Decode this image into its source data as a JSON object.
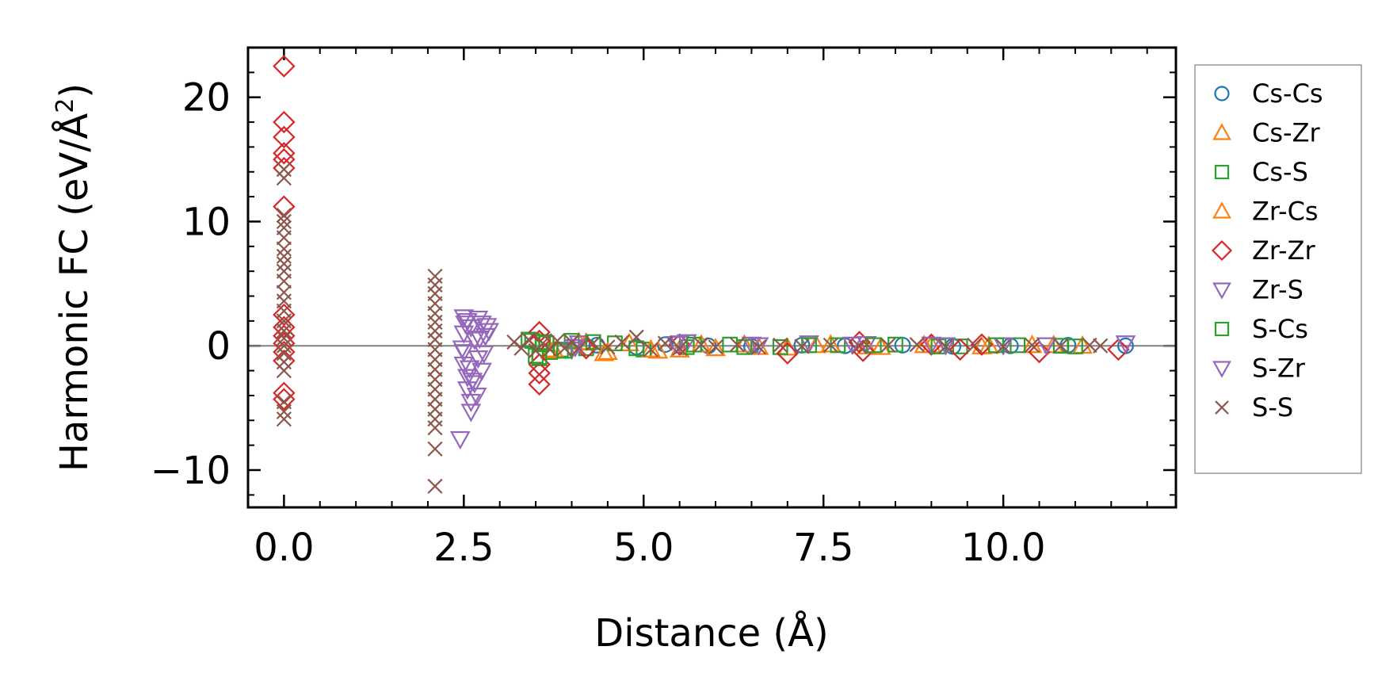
{
  "chart_data": {
    "type": "scatter",
    "title": "",
    "xlabel": "Distance (Å)",
    "ylabel": "Harmonic FC (eV/Å²)",
    "ylabel_main": "Harmonic FC (eV/Å",
    "ylabel_sup": "2",
    "ylabel_close": ")",
    "xlim": [
      -0.5,
      12.4
    ],
    "ylim": [
      -13,
      24
    ],
    "xticks": [
      0.0,
      2.5,
      5.0,
      7.5,
      10.0
    ],
    "xtick_labels": [
      "0.0",
      "2.5",
      "5.0",
      "7.5",
      "10.0"
    ],
    "yticks": [
      -10,
      0,
      10,
      20
    ],
    "ytick_labels": [
      "−10",
      "0",
      "10",
      "20"
    ],
    "grid": false,
    "zero_line": true,
    "legend_position": "right-outside",
    "series": [
      {
        "name": "Cs-Cs",
        "marker": "circle",
        "color": "#1f77b4",
        "points": [
          [
            4.35,
            0.05
          ],
          [
            4.9,
            -0.1
          ],
          [
            5.3,
            0.1
          ],
          [
            5.9,
            0.0
          ],
          [
            6.5,
            -0.05
          ],
          [
            7.2,
            0.05
          ],
          [
            7.8,
            0.0
          ],
          [
            8.6,
            0.05
          ],
          [
            9.3,
            -0.05
          ],
          [
            10.1,
            0.0
          ],
          [
            10.9,
            0.05
          ],
          [
            11.7,
            0.0
          ]
        ]
      },
      {
        "name": "Cs-Zr",
        "marker": "triangle-up",
        "color": "#ff7f0e",
        "points": [
          [
            3.7,
            -0.4
          ],
          [
            4.1,
            0.3
          ],
          [
            4.45,
            -0.6
          ],
          [
            4.8,
            0.2
          ],
          [
            5.2,
            -0.4
          ],
          [
            5.5,
            -0.3
          ],
          [
            6.0,
            -0.2
          ],
          [
            6.4,
            0.1
          ],
          [
            7.0,
            -0.15
          ],
          [
            7.6,
            0.1
          ],
          [
            8.3,
            -0.1
          ],
          [
            9.0,
            0.05
          ],
          [
            9.7,
            -0.05
          ],
          [
            10.4,
            0.05
          ],
          [
            11.1,
            0.0
          ]
        ]
      },
      {
        "name": "Cs-S",
        "marker": "square",
        "color": "#2ca02c",
        "points": [
          [
            3.4,
            0.5
          ],
          [
            3.5,
            -0.8
          ],
          [
            3.55,
            -1.0
          ],
          [
            3.6,
            0.3
          ],
          [
            3.7,
            -0.5
          ],
          [
            3.85,
            -0.3
          ],
          [
            4.0,
            0.4
          ],
          [
            4.2,
            -0.2
          ],
          [
            4.6,
            0.2
          ],
          [
            5.0,
            -0.3
          ],
          [
            5.6,
            -0.1
          ],
          [
            6.2,
            0.1
          ],
          [
            6.9,
            -0.1
          ],
          [
            7.7,
            0.05
          ],
          [
            8.5,
            0.1
          ],
          [
            9.4,
            -0.05
          ],
          [
            10.2,
            0.05
          ],
          [
            11.0,
            -0.05
          ]
        ]
      },
      {
        "name": "Zr-Cs",
        "marker": "triangle-up",
        "color": "#ff7f0e",
        "points": [
          [
            3.75,
            -0.3
          ],
          [
            4.2,
            0.25
          ],
          [
            4.5,
            -0.5
          ],
          [
            5.1,
            -0.3
          ],
          [
            5.8,
            0.1
          ],
          [
            6.6,
            -0.1
          ],
          [
            7.4,
            0.05
          ],
          [
            8.1,
            -0.05
          ],
          [
            8.9,
            0.05
          ],
          [
            9.8,
            0.0
          ],
          [
            10.7,
            0.05
          ]
        ]
      },
      {
        "name": "Zr-Zr",
        "marker": "diamond",
        "color": "#d62728",
        "points": [
          [
            0.0,
            22.5
          ],
          [
            0.0,
            18.0
          ],
          [
            0.0,
            16.8
          ],
          [
            0.0,
            15.5
          ],
          [
            0.0,
            15.0
          ],
          [
            0.0,
            14.3
          ],
          [
            0.0,
            11.2
          ],
          [
            0.0,
            2.5
          ],
          [
            0.0,
            1.5
          ],
          [
            0.0,
            0.8
          ],
          [
            0.0,
            0.2
          ],
          [
            0.0,
            -0.5
          ],
          [
            0.0,
            -1.2
          ],
          [
            0.0,
            -3.8
          ],
          [
            0.0,
            -4.3
          ],
          [
            3.55,
            1.1
          ],
          [
            3.55,
            0.4
          ],
          [
            3.55,
            -1.5
          ],
          [
            3.55,
            -2.2
          ],
          [
            3.55,
            -3.1
          ],
          [
            4.2,
            -0.2
          ],
          [
            5.5,
            0.1
          ],
          [
            7.0,
            -0.6
          ],
          [
            8.0,
            0.3
          ],
          [
            8.05,
            -0.4
          ],
          [
            9.0,
            0.1
          ],
          [
            9.4,
            -0.3
          ],
          [
            9.7,
            0.1
          ],
          [
            10.5,
            -0.5
          ],
          [
            11.6,
            -0.3
          ]
        ]
      },
      {
        "name": "Zr-S",
        "marker": "triangle-down",
        "color": "#9467bd",
        "points": [
          [
            2.45,
            -7.5
          ],
          [
            2.5,
            2.3
          ],
          [
            2.5,
            1.0
          ],
          [
            2.5,
            -0.5
          ],
          [
            2.5,
            -1.5
          ],
          [
            2.55,
            2.0
          ],
          [
            2.55,
            -2.5
          ],
          [
            2.55,
            -3.5
          ],
          [
            2.6,
            1.5
          ],
          [
            2.6,
            -4.5
          ],
          [
            2.6,
            -5.3
          ],
          [
            2.65,
            0.5
          ],
          [
            2.65,
            -3.0
          ],
          [
            2.7,
            2.2
          ],
          [
            2.7,
            -1.0
          ],
          [
            2.75,
            1.8
          ],
          [
            2.75,
            -2.0
          ],
          [
            2.8,
            0.8
          ],
          [
            2.85,
            1.2
          ],
          [
            4.0,
            -0.3
          ],
          [
            4.1,
            0.2
          ],
          [
            5.5,
            0.2
          ],
          [
            5.6,
            0.3
          ],
          [
            6.5,
            0.1
          ],
          [
            7.3,
            0.2
          ],
          [
            8.1,
            0.15
          ],
          [
            9.0,
            0.1
          ],
          [
            10.0,
            0.05
          ],
          [
            11.7,
            0.2
          ]
        ]
      },
      {
        "name": "S-Cs",
        "marker": "square",
        "color": "#2ca02c",
        "points": [
          [
            3.45,
            0.4
          ],
          [
            3.55,
            -0.9
          ],
          [
            3.65,
            0.2
          ],
          [
            3.9,
            -0.4
          ],
          [
            4.3,
            0.3
          ],
          [
            4.9,
            -0.2
          ],
          [
            5.7,
            0.1
          ],
          [
            6.4,
            -0.1
          ],
          [
            7.3,
            0.05
          ],
          [
            8.2,
            0.05
          ],
          [
            9.1,
            -0.05
          ],
          [
            9.9,
            0.05
          ],
          [
            10.8,
            0.0
          ]
        ]
      },
      {
        "name": "S-Zr",
        "marker": "triangle-down",
        "color": "#9467bd",
        "points": [
          [
            2.48,
            -0.2
          ],
          [
            2.52,
            1.8
          ],
          [
            2.58,
            -1.8
          ],
          [
            2.62,
            -2.8
          ],
          [
            2.68,
            -4.0
          ],
          [
            2.72,
            0.6
          ],
          [
            2.78,
            -0.6
          ],
          [
            2.82,
            1.6
          ],
          [
            4.05,
            -0.1
          ],
          [
            5.45,
            0.15
          ],
          [
            6.6,
            0.05
          ],
          [
            7.9,
            0.1
          ],
          [
            9.2,
            0.05
          ],
          [
            10.6,
            0.05
          ]
        ]
      },
      {
        "name": "S-S",
        "marker": "x",
        "color": "#8c564b",
        "points": [
          [
            0.0,
            14.2
          ],
          [
            0.0,
            13.5
          ],
          [
            0.0,
            10.5
          ],
          [
            0.0,
            10.0
          ],
          [
            0.0,
            9.5
          ],
          [
            0.0,
            8.7
          ],
          [
            0.0,
            7.8
          ],
          [
            0.0,
            7.2
          ],
          [
            0.0,
            6.6
          ],
          [
            0.0,
            6.0
          ],
          [
            0.0,
            5.2
          ],
          [
            0.0,
            4.3
          ],
          [
            0.0,
            3.6
          ],
          [
            0.0,
            2.8
          ],
          [
            0.0,
            2.0
          ],
          [
            0.0,
            1.2
          ],
          [
            0.0,
            0.6
          ],
          [
            0.0,
            0.0
          ],
          [
            0.0,
            -0.6
          ],
          [
            0.0,
            -1.3
          ],
          [
            0.0,
            -2.0
          ],
          [
            0.0,
            -4.5
          ],
          [
            0.0,
            -5.3
          ],
          [
            0.0,
            -5.9
          ],
          [
            2.1,
            5.6
          ],
          [
            2.1,
            4.9
          ],
          [
            2.1,
            4.2
          ],
          [
            2.1,
            3.4
          ],
          [
            2.1,
            2.6
          ],
          [
            2.1,
            1.9
          ],
          [
            2.1,
            1.2
          ],
          [
            2.1,
            0.5
          ],
          [
            2.1,
            -0.3
          ],
          [
            2.1,
            -1.1
          ],
          [
            2.1,
            -1.9
          ],
          [
            2.1,
            -2.7
          ],
          [
            2.1,
            -3.5
          ],
          [
            2.1,
            -4.3
          ],
          [
            2.1,
            -5.1
          ],
          [
            2.1,
            -5.9
          ],
          [
            2.1,
            -6.6
          ],
          [
            2.1,
            -8.3
          ],
          [
            2.1,
            -11.3
          ],
          [
            3.2,
            0.3
          ],
          [
            3.3,
            -0.2
          ],
          [
            3.4,
            0.5
          ],
          [
            3.5,
            -0.4
          ],
          [
            3.6,
            0.2
          ],
          [
            3.7,
            -0.3
          ],
          [
            3.8,
            0.4
          ],
          [
            3.9,
            -0.2
          ],
          [
            4.0,
            0.3
          ],
          [
            4.1,
            -0.2
          ],
          [
            4.3,
            0.2
          ],
          [
            4.5,
            -0.1
          ],
          [
            4.7,
            0.3
          ],
          [
            4.9,
            0.7
          ],
          [
            5.1,
            -0.3
          ],
          [
            5.3,
            0.2
          ],
          [
            5.5,
            -0.2
          ],
          [
            5.8,
            0.1
          ],
          [
            6.0,
            -0.1
          ],
          [
            6.3,
            0.1
          ],
          [
            6.6,
            -0.1
          ],
          [
            6.9,
            0.05
          ],
          [
            7.2,
            -0.05
          ],
          [
            7.6,
            0.05
          ],
          [
            8.0,
            -0.05
          ],
          [
            8.4,
            0.05
          ],
          [
            8.8,
            0.1
          ],
          [
            9.2,
            -0.05
          ],
          [
            9.6,
            0.05
          ],
          [
            10.0,
            -0.05
          ],
          [
            10.4,
            0.05
          ],
          [
            10.8,
            0.0
          ],
          [
            11.2,
            0.05
          ],
          [
            11.35,
            0.0
          ]
        ]
      }
    ]
  }
}
